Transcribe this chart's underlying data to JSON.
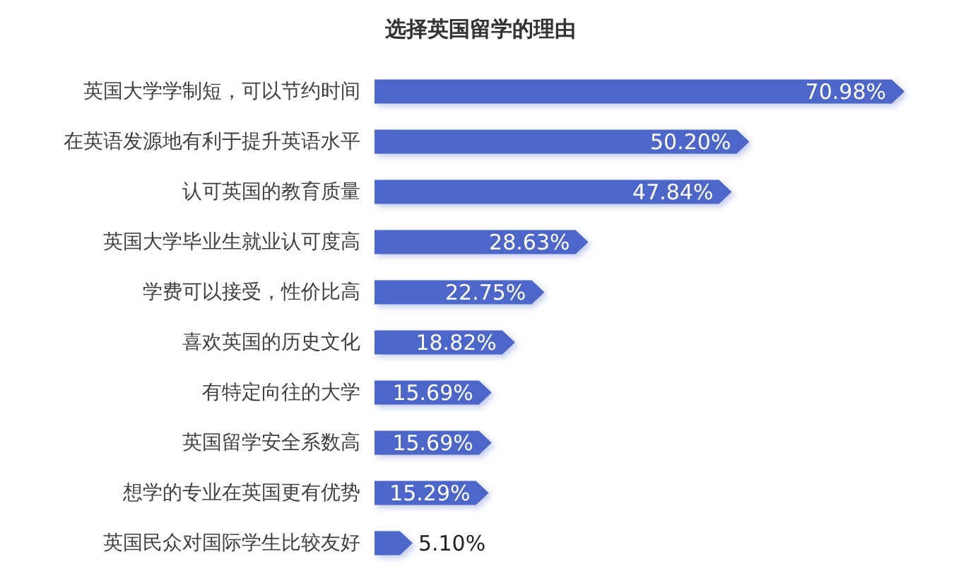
{
  "chart_data": {
    "type": "bar",
    "orientation": "horizontal",
    "title": "选择英国留学的理由",
    "categories": [
      "英国大学学制短，可以节约时间",
      "在英语发源地有利于提升英语水平",
      "认可英国的教育质量",
      "英国大学毕业生就业认可度高",
      "学费可以接受，性价比高",
      "喜欢英国的历史文化",
      "有特定向往的大学",
      "英国留学安全系数高",
      "想学的专业在英国更有优势",
      "英国民众对国际学生比较友好"
    ],
    "values": [
      70.98,
      50.2,
      47.84,
      28.63,
      22.75,
      18.82,
      15.69,
      15.69,
      15.29,
      5.1
    ],
    "value_labels": [
      "70.98%",
      "50.20%",
      "47.84%",
      "28.63%",
      "22.75%",
      "18.82%",
      "15.69%",
      "15.69%",
      "15.29%",
      "5.10%"
    ],
    "color": "#4e66c9",
    "tick_labels": "y"
  }
}
